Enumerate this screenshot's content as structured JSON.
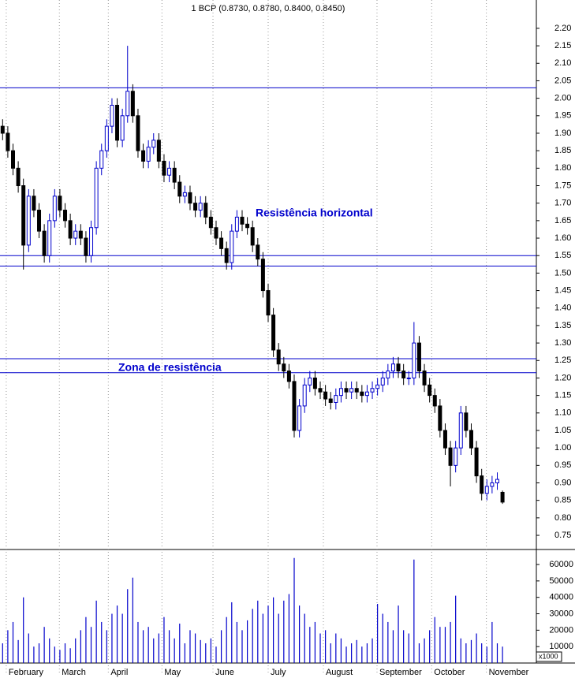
{
  "chart_data": {
    "type": "candlestick",
    "title": "1 BCP (0.8730, 0.8780, 0.8400, 0.8450)",
    "annotations": [
      "Resistência horizontal",
      "Zona de resistência"
    ],
    "up_color": "#0000cc",
    "down_color": "#000000",
    "line_color": "#0000cc",
    "volume_color": "#0000cc",
    "hlines": [
      2.03,
      1.55,
      1.52,
      1.255,
      1.215
    ],
    "xlim": [
      -0.5,
      102.5
    ],
    "xticks": [
      {
        "value": 0.7,
        "label": "February"
      },
      {
        "value": 10.9,
        "label": "March"
      },
      {
        "value": 20.3,
        "label": "April"
      },
      {
        "value": 30.6,
        "label": "May"
      },
      {
        "value": 40.4,
        "label": "June"
      },
      {
        "value": 51.0,
        "label": "July"
      },
      {
        "value": 61.6,
        "label": "August"
      },
      {
        "value": 71.9,
        "label": "September"
      },
      {
        "value": 82.4,
        "label": "October"
      },
      {
        "value": 92.9,
        "label": "November"
      }
    ],
    "ylim": [
      0.714,
      2.281
    ],
    "yticks": [
      {
        "value": 2.2,
        "label": "2.20"
      },
      2.15,
      {
        "value": 2.1,
        "label": "2.10"
      },
      2.05,
      {
        "value": 2.0,
        "label": "2.00"
      },
      1.95,
      {
        "value": 1.9,
        "label": "1.90"
      },
      1.85,
      {
        "value": 1.8,
        "label": "1.80"
      },
      1.75,
      {
        "value": 1.7,
        "label": "1.70"
      },
      1.65,
      {
        "value": 1.6,
        "label": "1.60"
      },
      1.55,
      {
        "value": 1.5,
        "label": "1.50"
      },
      1.45,
      {
        "value": 1.4,
        "label": "1.40"
      },
      1.35,
      {
        "value": 1.3,
        "label": "1.30"
      },
      1.25,
      {
        "value": 1.2,
        "label": "1.20"
      },
      1.15,
      {
        "value": 1.1,
        "label": "1.10"
      },
      1.05,
      {
        "value": 1.0,
        "label": "1.00"
      },
      0.95,
      {
        "value": 0.9,
        "label": "0.90"
      },
      0.85,
      {
        "value": 0.8,
        "label": "0.80"
      },
      0.75
    ],
    "volume_ylim": [
      0,
      67700
    ],
    "volume_yticks": [
      10000,
      20000,
      30000,
      40000,
      50000,
      60000
    ],
    "volume_unit": "x1000",
    "open": [
      1.92,
      1.9,
      1.85,
      1.8,
      1.75,
      1.58,
      1.72,
      1.68,
      1.62,
      1.55,
      1.65,
      1.72,
      1.68,
      1.65,
      1.6,
      1.62,
      1.6,
      1.55,
      1.63,
      1.8,
      1.85,
      1.92,
      1.98,
      1.88,
      1.95,
      2.02,
      1.95,
      1.85,
      1.82,
      1.86,
      1.88,
      1.82,
      1.78,
      1.8,
      1.76,
      1.72,
      1.73,
      1.7,
      1.68,
      1.7,
      1.66,
      1.63,
      1.6,
      1.57,
      1.53,
      1.62,
      1.66,
      1.64,
      1.63,
      1.58,
      1.54,
      1.45,
      1.38,
      1.28,
      1.24,
      1.22,
      1.19,
      1.05,
      1.12,
      1.18,
      1.2,
      1.17,
      1.16,
      1.14,
      1.13,
      1.15,
      1.17,
      1.16,
      1.17,
      1.16,
      1.15,
      1.16,
      1.17,
      1.18,
      1.2,
      1.22,
      1.24,
      1.22,
      1.2,
      1.2,
      1.3,
      1.22,
      1.18,
      1.15,
      1.12,
      1.05,
      1.0,
      0.95,
      1.0,
      1.1,
      1.05,
      1.0,
      0.92,
      0.87,
      0.89,
      0.9,
      0.873
    ],
    "high": [
      1.94,
      1.92,
      1.87,
      1.82,
      1.77,
      1.74,
      1.74,
      1.7,
      1.64,
      1.67,
      1.74,
      1.74,
      1.7,
      1.67,
      1.64,
      1.64,
      1.62,
      1.65,
      1.82,
      1.87,
      1.94,
      2.0,
      2.0,
      1.97,
      2.15,
      2.04,
      1.97,
      1.87,
      1.88,
      1.9,
      1.9,
      1.84,
      1.82,
      1.82,
      1.78,
      1.75,
      1.75,
      1.72,
      1.72,
      1.72,
      1.68,
      1.65,
      1.62,
      1.59,
      1.64,
      1.68,
      1.68,
      1.66,
      1.65,
      1.6,
      1.56,
      1.47,
      1.4,
      1.3,
      1.26,
      1.24,
      1.21,
      1.14,
      1.2,
      1.22,
      1.22,
      1.19,
      1.18,
      1.16,
      1.17,
      1.19,
      1.19,
      1.19,
      1.19,
      1.18,
      1.18,
      1.19,
      1.2,
      1.22,
      1.24,
      1.26,
      1.26,
      1.24,
      1.22,
      1.36,
      1.32,
      1.24,
      1.2,
      1.17,
      1.14,
      1.07,
      1.02,
      1.02,
      1.12,
      1.12,
      1.07,
      1.02,
      0.94,
      0.91,
      0.92,
      0.93,
      0.878
    ],
    "low": [
      1.88,
      1.83,
      1.78,
      1.73,
      1.51,
      1.56,
      1.66,
      1.6,
      1.53,
      1.53,
      1.63,
      1.66,
      1.63,
      1.58,
      1.58,
      1.58,
      1.53,
      1.53,
      1.61,
      1.78,
      1.83,
      1.9,
      1.86,
      1.86,
      1.93,
      1.93,
      1.83,
      1.8,
      1.8,
      1.84,
      1.8,
      1.76,
      1.76,
      1.74,
      1.7,
      1.7,
      1.68,
      1.66,
      1.66,
      1.64,
      1.61,
      1.58,
      1.55,
      1.51,
      1.51,
      1.6,
      1.62,
      1.61,
      1.56,
      1.52,
      1.43,
      1.36,
      1.26,
      1.22,
      1.2,
      1.17,
      1.03,
      1.03,
      1.1,
      1.16,
      1.15,
      1.14,
      1.12,
      1.11,
      1.11,
      1.13,
      1.14,
      1.14,
      1.14,
      1.13,
      1.13,
      1.14,
      1.15,
      1.16,
      1.18,
      1.2,
      1.2,
      1.18,
      1.18,
      1.18,
      1.2,
      1.16,
      1.13,
      1.1,
      1.03,
      0.98,
      0.89,
      0.93,
      0.98,
      1.03,
      0.98,
      0.9,
      0.85,
      0.85,
      0.87,
      0.88,
      0.84
    ],
    "close": [
      1.9,
      1.85,
      1.8,
      1.75,
      1.58,
      1.72,
      1.68,
      1.62,
      1.55,
      1.65,
      1.72,
      1.68,
      1.65,
      1.6,
      1.62,
      1.6,
      1.55,
      1.63,
      1.8,
      1.85,
      1.92,
      1.98,
      1.88,
      1.95,
      2.02,
      1.95,
      1.85,
      1.82,
      1.86,
      1.88,
      1.82,
      1.78,
      1.8,
      1.76,
      1.72,
      1.73,
      1.7,
      1.68,
      1.7,
      1.66,
      1.63,
      1.6,
      1.57,
      1.53,
      1.62,
      1.66,
      1.64,
      1.63,
      1.58,
      1.54,
      1.45,
      1.38,
      1.28,
      1.24,
      1.22,
      1.19,
      1.05,
      1.12,
      1.18,
      1.2,
      1.17,
      1.16,
      1.14,
      1.13,
      1.15,
      1.17,
      1.16,
      1.17,
      1.16,
      1.15,
      1.16,
      1.17,
      1.18,
      1.2,
      1.22,
      1.24,
      1.22,
      1.2,
      1.2,
      1.3,
      1.22,
      1.18,
      1.15,
      1.12,
      1.05,
      1.0,
      0.95,
      1.0,
      1.1,
      1.05,
      1.0,
      0.92,
      0.87,
      0.89,
      0.9,
      0.91,
      0.845
    ],
    "volume": [
      12000,
      20000,
      25000,
      14000,
      40000,
      18000,
      10000,
      12000,
      22000,
      15000,
      10000,
      8000,
      12000,
      9000,
      15000,
      20000,
      28000,
      22000,
      38000,
      25000,
      20000,
      30000,
      35000,
      30000,
      45000,
      52000,
      25000,
      20000,
      22000,
      15000,
      18000,
      28000,
      20000,
      15000,
      24000,
      12000,
      20000,
      18000,
      14000,
      12000,
      15000,
      10000,
      20000,
      28000,
      37000,
      25000,
      20000,
      26000,
      33000,
      38000,
      30000,
      35000,
      40000,
      30000,
      38000,
      42000,
      64000,
      35000,
      30000,
      22000,
      25000,
      18000,
      20000,
      12000,
      18000,
      15000,
      10000,
      12000,
      14000,
      10000,
      12000,
      15000,
      36000,
      30000,
      25000,
      20000,
      35000,
      20000,
      18000,
      63000,
      12000,
      15000,
      20000,
      28000,
      22000,
      22000,
      25000,
      41000,
      15000,
      12000,
      14000,
      18000,
      12000,
      10000,
      25000,
      12000,
      10000
    ]
  }
}
